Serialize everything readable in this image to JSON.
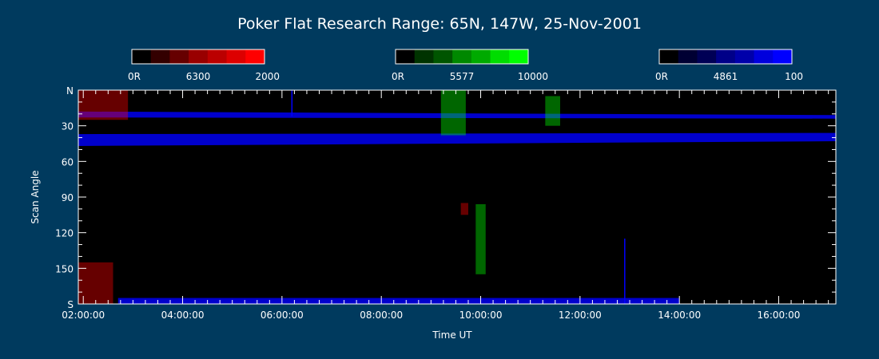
{
  "chart_data": {
    "type": "heatmap",
    "title": "Poker Flat Research Range: 65N, 147W, 25-Nov-2001",
    "xlabel": "Time UT",
    "ylabel": "Scan Angle",
    "x_range_hours": [
      1.9,
      17.15
    ],
    "x_ticks": [
      {
        "hour": 2,
        "label": "02:00:00"
      },
      {
        "hour": 4,
        "label": "04:00:00"
      },
      {
        "hour": 6,
        "label": "06:00:00"
      },
      {
        "hour": 8,
        "label": "08:00:00"
      },
      {
        "hour": 10,
        "label": "10:00:00"
      },
      {
        "hour": 12,
        "label": "12:00:00"
      },
      {
        "hour": 14,
        "label": "14:00:00"
      },
      {
        "hour": 16,
        "label": "16:00:00"
      }
    ],
    "y_range": [
      0,
      180
    ],
    "y_ticks": [
      {
        "value": 0,
        "label": "N"
      },
      {
        "value": 30,
        "label": "30"
      },
      {
        "value": 60,
        "label": "60"
      },
      {
        "value": 90,
        "label": "90"
      },
      {
        "value": 120,
        "label": "120"
      },
      {
        "value": 150,
        "label": "150"
      },
      {
        "value": 180,
        "label": "S"
      }
    ],
    "colorbars": [
      {
        "name": "6300",
        "min_label": "0R",
        "max_label": "2000",
        "colors": [
          "#000000",
          "#330000",
          "#660000",
          "#990000",
          "#bb0000",
          "#dd0000",
          "#ff0000"
        ]
      },
      {
        "name": "5577",
        "min_label": "0R",
        "max_label": "10000",
        "colors": [
          "#000000",
          "#003300",
          "#005500",
          "#008800",
          "#00aa00",
          "#00dd00",
          "#00ff00"
        ]
      },
      {
        "name": "4861",
        "min_label": "0R",
        "max_label": "100",
        "colors": [
          "#000000",
          "#000033",
          "#000055",
          "#000088",
          "#0000aa",
          "#0000dd",
          "#0000ff"
        ]
      }
    ],
    "features": [
      {
        "channel": "4861",
        "kind": "band",
        "x": [
          1.9,
          17.15
        ],
        "y_start": [
          18,
          21
        ],
        "y_end": [
          23,
          24
        ]
      },
      {
        "channel": "4861",
        "kind": "band",
        "x": [
          1.9,
          17.15
        ],
        "y_start": [
          37,
          36
        ],
        "y_end": [
          47,
          43
        ]
      },
      {
        "channel": "4861",
        "kind": "band",
        "x": [
          2.7,
          14.0
        ],
        "y_start": [
          175
        ],
        "y_end": [
          180
        ]
      },
      {
        "channel": "5577",
        "kind": "patch",
        "x": [
          9.2,
          9.7
        ],
        "y": [
          0,
          38
        ]
      },
      {
        "channel": "5577",
        "kind": "patch",
        "x": [
          9.9,
          10.1
        ],
        "y": [
          96,
          155
        ]
      },
      {
        "channel": "5577",
        "kind": "patch",
        "x": [
          11.3,
          11.6
        ],
        "y": [
          5,
          30
        ]
      },
      {
        "channel": "6300",
        "kind": "patch",
        "x": [
          1.9,
          2.9
        ],
        "y": [
          0,
          25
        ]
      },
      {
        "channel": "6300",
        "kind": "patch",
        "x": [
          1.9,
          2.6
        ],
        "y": [
          145,
          180
        ]
      },
      {
        "channel": "6300",
        "kind": "patch",
        "x": [
          9.6,
          9.75
        ],
        "y": [
          95,
          105
        ]
      },
      {
        "channel": "4861",
        "kind": "spike",
        "x": [
          6.2
        ],
        "y": [
          0,
          22
        ]
      },
      {
        "channel": "4861",
        "kind": "spike",
        "x": [
          12.9
        ],
        "y": [
          125,
          180
        ]
      }
    ]
  }
}
